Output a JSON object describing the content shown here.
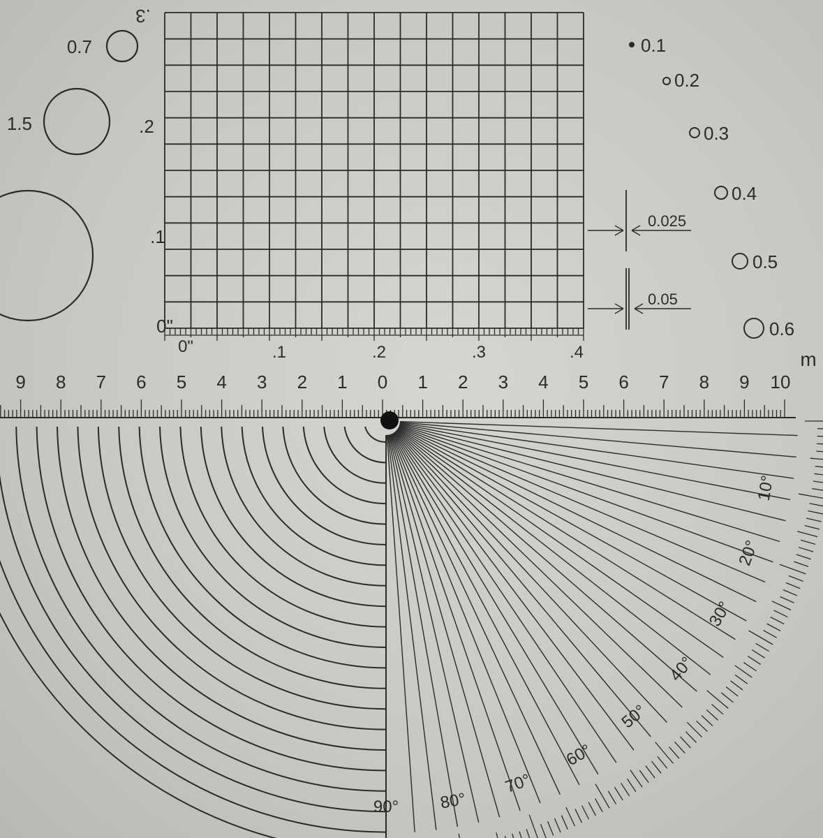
{
  "grid": {
    "y_labels": [
      ".3",
      ".2",
      ".1",
      "0\""
    ],
    "x_labels": [
      "0\"",
      ".1",
      ".2",
      ".3",
      ".4"
    ]
  },
  "circles_left": [
    {
      "label": "0.7"
    },
    {
      "label": "1.5"
    }
  ],
  "dots_right": [
    {
      "label": "0.1"
    },
    {
      "label": "0.2"
    },
    {
      "label": "0.3"
    },
    {
      "label": "0.4"
    },
    {
      "label": "0.5"
    },
    {
      "label": "0.6"
    }
  ],
  "line_gauges": [
    {
      "label": "0.025"
    },
    {
      "label": "0.05"
    }
  ],
  "ruler": {
    "unit": "m",
    "labels_left": [
      "9",
      "8",
      "7",
      "6",
      "5",
      "4",
      "3",
      "2",
      "1"
    ],
    "labels_right": [
      "0",
      "1",
      "2",
      "3",
      "4",
      "5",
      "6",
      "7",
      "8",
      "9",
      "10"
    ]
  },
  "protractor": {
    "angle_labels": [
      "10°",
      "20°",
      "30°",
      "40°",
      "50°",
      "60°",
      "70°",
      "80°",
      "90°"
    ]
  },
  "colors": {
    "ink": "#2a2a2a",
    "paper": "#d2d1cc",
    "pin": "#111111"
  }
}
